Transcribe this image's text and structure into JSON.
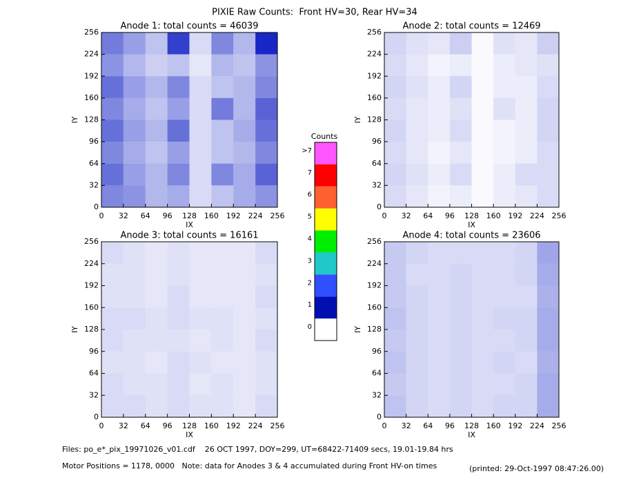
{
  "title": "PIXIE Raw Counts:  Front HV=30, Rear HV=34",
  "colorbar": {
    "title": "Counts",
    "ticks": [
      0,
      1,
      2,
      3,
      4,
      5,
      6,
      7,
      {
        "value": 8,
        "label": ">7"
      }
    ],
    "colors": [
      "#ffffff",
      "#0010b0",
      "#3050ff",
      "#20c8c8",
      "#00ee00",
      "#ffff00",
      "#ff6030",
      "#ff0000",
      "#ff55ff"
    ]
  },
  "chart_data": [
    {
      "type": "heatmap",
      "title": "Anode 1: total counts = 46039",
      "xlabel": "IX",
      "ylabel": "IY",
      "xlim": [
        0,
        256
      ],
      "ylim": [
        0,
        256
      ],
      "xticks": [
        0,
        32,
        64,
        96,
        128,
        160,
        192,
        224,
        256
      ],
      "yticks": [
        0,
        32,
        64,
        96,
        128,
        160,
        192,
        224,
        256
      ],
      "x": [
        16,
        48,
        80,
        112,
        144,
        176,
        208,
        240
      ],
      "y": [
        16,
        48,
        80,
        112,
        144,
        176,
        208,
        240
      ],
      "values": [
        [
          1.0,
          0.9,
          0.6,
          0.7,
          0.3,
          0.5,
          0.7,
          0.9
        ],
        [
          1.2,
          0.8,
          0.6,
          1.0,
          0.3,
          1.0,
          0.7,
          1.3
        ],
        [
          1.0,
          0.7,
          0.5,
          0.8,
          0.3,
          0.5,
          0.6,
          1.0
        ],
        [
          1.2,
          0.8,
          0.6,
          1.2,
          0.3,
          0.5,
          0.7,
          1.2
        ],
        [
          1.0,
          0.7,
          0.5,
          0.8,
          0.3,
          1.1,
          0.6,
          1.3
        ],
        [
          1.2,
          0.8,
          0.6,
          1.0,
          0.3,
          0.5,
          0.6,
          1.0
        ],
        [
          0.9,
          0.6,
          0.4,
          0.5,
          0.2,
          0.6,
          0.5,
          0.9
        ],
        [
          1.1,
          0.8,
          0.5,
          1.6,
          0.3,
          1.0,
          0.6,
          1.8
        ]
      ]
    },
    {
      "type": "heatmap",
      "title": "Anode 2: total counts = 12469",
      "xlabel": "IX",
      "ylabel": "IY",
      "xlim": [
        0,
        256
      ],
      "ylim": [
        0,
        256
      ],
      "xticks": [
        0,
        32,
        64,
        96,
        128,
        160,
        192,
        224,
        256
      ],
      "yticks": [
        0,
        32,
        64,
        96,
        128,
        160,
        192,
        224,
        256
      ],
      "x": [
        16,
        48,
        80,
        112,
        144,
        176,
        208,
        240
      ],
      "y": [
        16,
        48,
        80,
        112,
        144,
        176,
        208,
        240
      ],
      "values": [
        [
          0.3,
          0.2,
          0.1,
          0.15,
          0.05,
          0.15,
          0.2,
          0.3
        ],
        [
          0.35,
          0.25,
          0.15,
          0.3,
          0.05,
          0.15,
          0.3,
          0.3
        ],
        [
          0.3,
          0.2,
          0.1,
          0.2,
          0.05,
          0.1,
          0.15,
          0.3
        ],
        [
          0.35,
          0.2,
          0.15,
          0.3,
          0.05,
          0.1,
          0.15,
          0.35
        ],
        [
          0.3,
          0.2,
          0.15,
          0.25,
          0.05,
          0.25,
          0.15,
          0.35
        ],
        [
          0.35,
          0.25,
          0.15,
          0.35,
          0.05,
          0.15,
          0.15,
          0.3
        ],
        [
          0.3,
          0.2,
          0.1,
          0.15,
          0.05,
          0.15,
          0.2,
          0.25
        ],
        [
          0.35,
          0.25,
          0.2,
          0.4,
          0.05,
          0.25,
          0.2,
          0.4
        ]
      ]
    },
    {
      "type": "heatmap",
      "title": "Anode 3: total counts = 16161",
      "xlabel": "IX",
      "ylabel": "IY",
      "xlim": [
        0,
        256
      ],
      "ylim": [
        0,
        256
      ],
      "xticks": [
        0,
        32,
        64,
        96,
        128,
        160,
        192,
        224,
        256
      ],
      "yticks": [
        0,
        32,
        64,
        96,
        128,
        160,
        192,
        224,
        256
      ],
      "x": [
        16,
        48,
        80,
        112,
        144,
        176,
        208,
        240
      ],
      "y": [
        16,
        48,
        80,
        112,
        144,
        176,
        208,
        240
      ],
      "values": [
        [
          0.3,
          0.3,
          0.25,
          0.3,
          0.25,
          0.25,
          0.2,
          0.3
        ],
        [
          0.3,
          0.25,
          0.25,
          0.3,
          0.2,
          0.25,
          0.2,
          0.25
        ],
        [
          0.25,
          0.25,
          0.2,
          0.3,
          0.25,
          0.2,
          0.2,
          0.25
        ],
        [
          0.3,
          0.25,
          0.25,
          0.25,
          0.2,
          0.25,
          0.2,
          0.3
        ],
        [
          0.3,
          0.3,
          0.25,
          0.3,
          0.25,
          0.25,
          0.2,
          0.25
        ],
        [
          0.25,
          0.25,
          0.2,
          0.3,
          0.2,
          0.2,
          0.2,
          0.3
        ],
        [
          0.25,
          0.25,
          0.2,
          0.25,
          0.2,
          0.2,
          0.2,
          0.25
        ],
        [
          0.3,
          0.25,
          0.2,
          0.25,
          0.2,
          0.2,
          0.2,
          0.3
        ]
      ]
    },
    {
      "type": "heatmap",
      "title": "Anode 4: total counts = 23606",
      "xlabel": "IX",
      "ylabel": "IY",
      "xlim": [
        0,
        256
      ],
      "ylim": [
        0,
        256
      ],
      "xticks": [
        0,
        32,
        64,
        96,
        128,
        160,
        192,
        224,
        256
      ],
      "yticks": [
        0,
        32,
        64,
        96,
        128,
        160,
        192,
        224,
        256
      ],
      "x": [
        16,
        48,
        80,
        112,
        144,
        176,
        208,
        240
      ],
      "y": [
        16,
        48,
        80,
        112,
        144,
        176,
        208,
        240
      ],
      "values": [
        [
          0.5,
          0.35,
          0.3,
          0.35,
          0.3,
          0.35,
          0.35,
          0.7
        ],
        [
          0.45,
          0.35,
          0.3,
          0.35,
          0.3,
          0.3,
          0.35,
          0.7
        ],
        [
          0.5,
          0.35,
          0.3,
          0.35,
          0.3,
          0.35,
          0.3,
          0.65
        ],
        [
          0.45,
          0.35,
          0.3,
          0.35,
          0.3,
          0.3,
          0.35,
          0.7
        ],
        [
          0.5,
          0.35,
          0.3,
          0.35,
          0.3,
          0.35,
          0.35,
          0.7
        ],
        [
          0.45,
          0.35,
          0.3,
          0.35,
          0.3,
          0.3,
          0.3,
          0.65
        ],
        [
          0.45,
          0.3,
          0.3,
          0.35,
          0.3,
          0.3,
          0.35,
          0.7
        ],
        [
          0.45,
          0.35,
          0.3,
          0.3,
          0.3,
          0.3,
          0.35,
          0.75
        ]
      ]
    }
  ],
  "footer": [
    "Files: po_e*_pix_19971026_v01.cdf    26 OCT 1997, DOY=299, UT=68422-71409 secs, 19.01-19.84 hrs",
    "Motor Positions = 1178, 0000   Note: data for Anodes 3 & 4 accumulated during Front HV-on times",
    "(printed: 29-Oct-1997 08:47:26.00)"
  ]
}
